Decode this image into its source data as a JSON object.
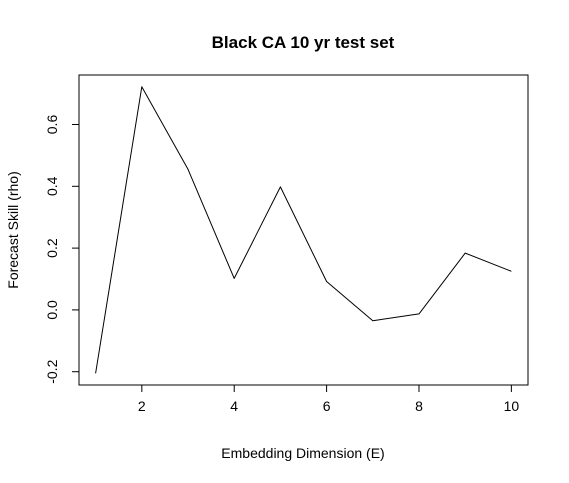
{
  "chart_data": {
    "type": "line",
    "title": "Black CA 10 yr test set",
    "xlabel": "Embedding Dimension (E)",
    "ylabel": "Forecast Skill (rho)",
    "xlim": [
      0.64,
      10.36
    ],
    "ylim": [
      -0.243,
      0.7602
    ],
    "x_ticks": [
      2,
      4,
      6,
      8,
      10
    ],
    "x_tick_labels": [
      "2",
      "4",
      "6",
      "8",
      "10"
    ],
    "y_ticks": [
      -0.2,
      0.0,
      0.2,
      0.4,
      0.6
    ],
    "y_tick_labels": [
      "-0.2",
      "0.0",
      "0.2",
      "0.4",
      "0.6"
    ],
    "grid": false,
    "legend": "none",
    "series": [
      {
        "x": [
          1,
          2,
          3,
          4,
          5,
          6,
          7,
          8,
          9,
          10
        ],
        "values": [
          -0.205,
          0.722,
          0.455,
          0.102,
          0.398,
          0.092,
          -0.035,
          -0.013,
          0.184,
          0.125
        ],
        "color": "#000000"
      }
    ]
  }
}
